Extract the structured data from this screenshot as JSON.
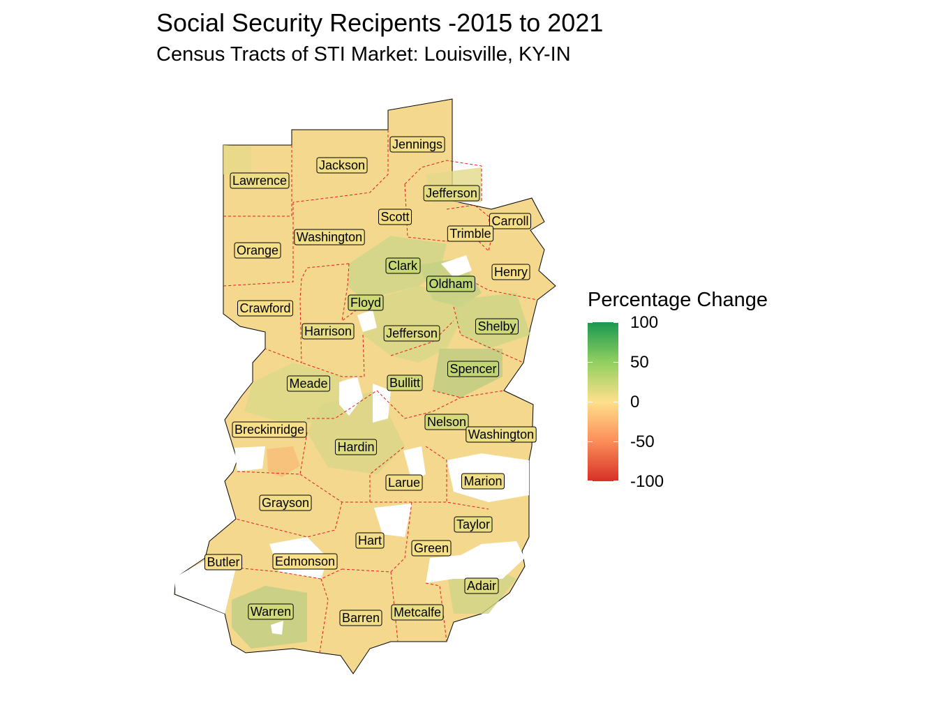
{
  "title": "Social Security Recipents -2015 to 2021",
  "subtitle": "Census Tracts of STI Market: Louisville, KY-IN",
  "legend": {
    "title": "Percentage Change",
    "ticks": [
      "100",
      "50",
      "0",
      "-50",
      "-100"
    ],
    "colors": [
      "#1a9850",
      "#91cf60",
      "#fee08b",
      "#fc8d59",
      "#d73027"
    ]
  },
  "counties": [
    {
      "name": "Jennings",
      "value": 5
    },
    {
      "name": "Jackson",
      "value": 6
    },
    {
      "name": "Lawrence",
      "value": 8
    },
    {
      "name": "Jefferson",
      "value": 12
    },
    {
      "name": "Scott",
      "value": 5
    },
    {
      "name": "Carroll",
      "value": 3
    },
    {
      "name": "Trimble",
      "value": 4
    },
    {
      "name": "Washington",
      "value": 6
    },
    {
      "name": "Orange",
      "value": 4
    },
    {
      "name": "Clark",
      "value": 25
    },
    {
      "name": "Henry",
      "value": 2
    },
    {
      "name": "Oldham",
      "value": 30
    },
    {
      "name": "Crawford",
      "value": 3
    },
    {
      "name": "Floyd",
      "value": 22
    },
    {
      "name": "Harrison",
      "value": 10
    },
    {
      "name": "Jefferson",
      "value": 15
    },
    {
      "name": "Shelby",
      "value": 22
    },
    {
      "name": "Spencer",
      "value": 28
    },
    {
      "name": "Meade",
      "value": 14
    },
    {
      "name": "Bullitt",
      "value": 20
    },
    {
      "name": "Nelson",
      "value": 18
    },
    {
      "name": "Breckinridge",
      "value": 2
    },
    {
      "name": "Washington",
      "value": 8
    },
    {
      "name": "Hardin",
      "value": 16
    },
    {
      "name": "Larue",
      "value": 6
    },
    {
      "name": "Marion",
      "value": 7
    },
    {
      "name": "Grayson",
      "value": 6
    },
    {
      "name": "Taylor",
      "value": 10
    },
    {
      "name": "Hart",
      "value": 5
    },
    {
      "name": "Green",
      "value": 4
    },
    {
      "name": "Butler",
      "value": 3
    },
    {
      "name": "Edmonson",
      "value": 2
    },
    {
      "name": "Adair",
      "value": 14
    },
    {
      "name": "Warren",
      "value": 20
    },
    {
      "name": "Barren",
      "value": 6
    },
    {
      "name": "Metcalfe",
      "value": 10
    }
  ]
}
